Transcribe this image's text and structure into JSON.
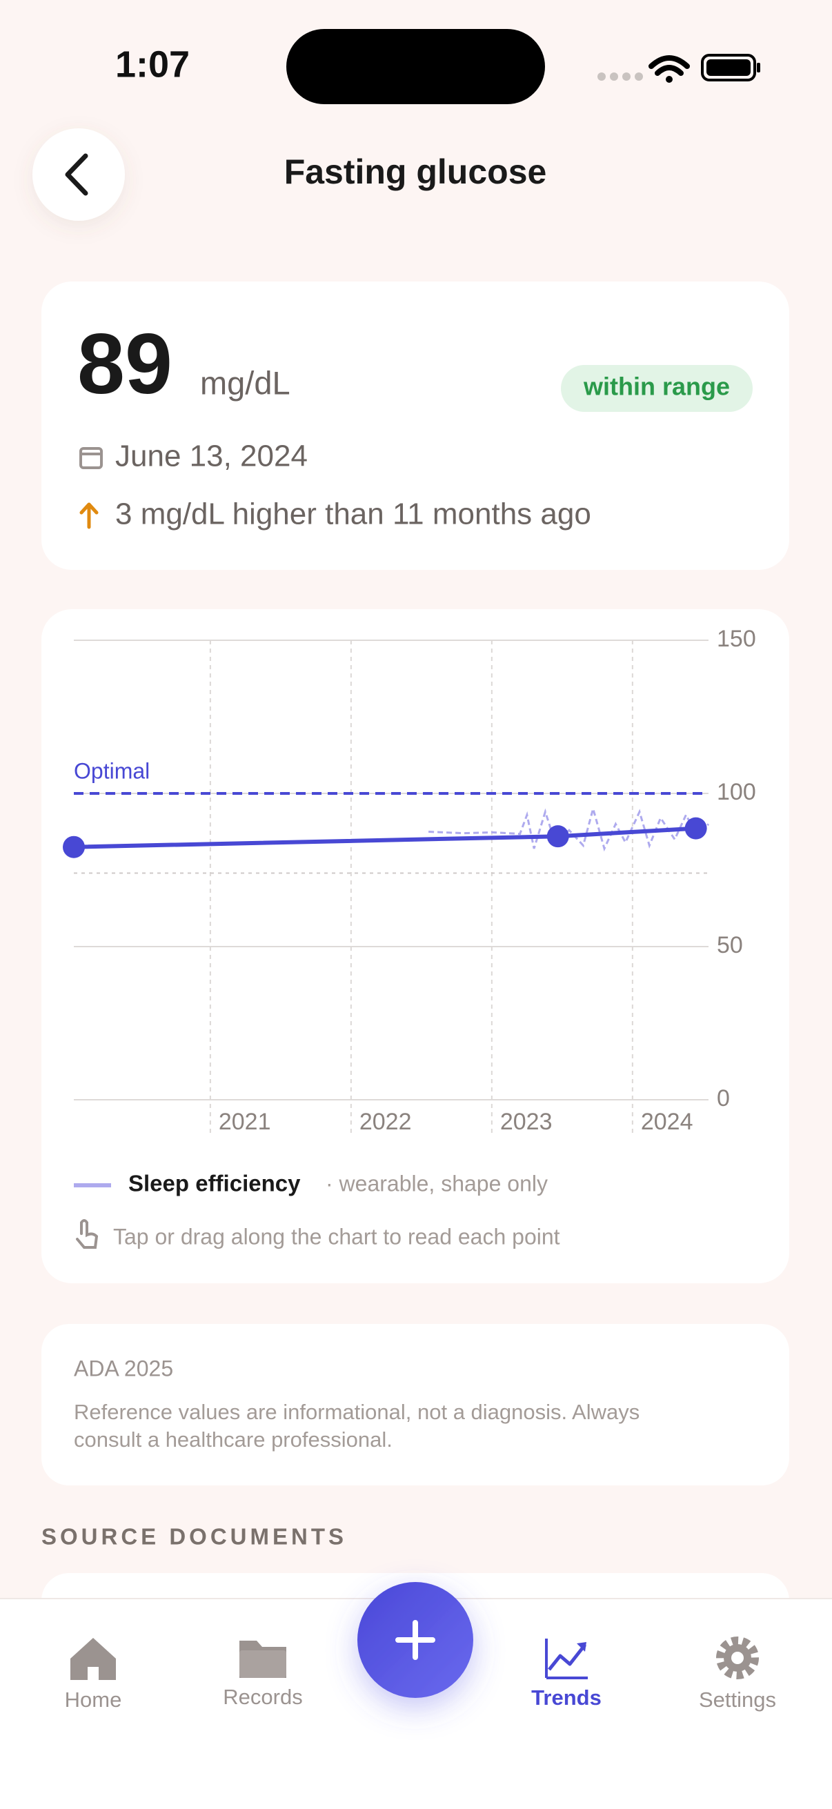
{
  "status_bar": {
    "time": "1:07"
  },
  "header": {
    "title": "Fasting glucose"
  },
  "summary": {
    "value": 89,
    "unit": "mg/dL",
    "status": "within range",
    "date": "June 13, 2024",
    "change": "3 mg/dL higher than 11 months ago"
  },
  "chart": {
    "type": "line",
    "color": "#4848d4",
    "x": [
      2020.03,
      2023.47,
      2024.45
    ],
    "values": [
      82.5,
      86,
      88.6
    ],
    "optimal_label": "Optimal",
    "optimal_value": 100,
    "lower_reference": 74,
    "xlim": [
      2020.03,
      2024.54
    ],
    "xticks": [
      2021,
      2022,
      2023,
      2024
    ],
    "ylim": [
      0,
      150
    ],
    "yticks": [
      0,
      50,
      100,
      150
    ],
    "grid": true,
    "sleep": {
      "name": "Sleep efficiency",
      "note": "· wearable, shape only",
      "color": "#aeaaee",
      "x": [
        2022.55,
        2022.8,
        2023.0,
        2023.2,
        2023.25,
        2023.3,
        2023.38,
        2023.45,
        2023.55,
        2023.65,
        2023.72,
        2023.8,
        2023.88,
        2023.95,
        2024.05,
        2024.12,
        2024.2,
        2024.3,
        2024.38,
        2024.46,
        2024.54
      ],
      "values": [
        87.5,
        87,
        87.3,
        86.8,
        93,
        82,
        94,
        84,
        88,
        83,
        95,
        82,
        90,
        84,
        94,
        83,
        92,
        85,
        93,
        86,
        90
      ]
    },
    "hint": "Tap or drag along the chart to read each point"
  },
  "reference": {
    "source": "ADA 2025",
    "note_lines": [
      "Reference values are informational, not a diagnosis. Always",
      "consult a healthcare professional."
    ]
  },
  "section": {
    "title": "SOURCE DOCUMENTS"
  },
  "tab_bar": {
    "tabs": [
      "Home",
      "Records",
      "Trends",
      "Settings"
    ]
  }
}
